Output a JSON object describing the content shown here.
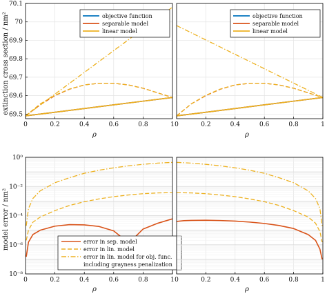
{
  "colors": {
    "objective": "#0072BD",
    "separable": "#D95319",
    "linear": "#EDB120",
    "grid": "#e3e3e3",
    "axis": "#000000"
  },
  "top_ylabel": "extinction cross section / nm²",
  "bottom_ylabel": "model error / nm²",
  "xlabel": "ρ",
  "chart_data": [
    {
      "type": "line",
      "panel": "top-left",
      "xlabel": "ρ",
      "ylabel": "extinction cross section / nm²",
      "xlim": [
        0,
        1
      ],
      "ylim": [
        69.475,
        70.1
      ],
      "xticks": [
        "0",
        "0.2",
        "0.4",
        "0.6",
        "0.8",
        "1"
      ],
      "yticks": [
        "69.5",
        "69.6",
        "69.7",
        "69.8",
        "69.9",
        "70",
        "70.1"
      ],
      "grid": true,
      "legend_position": "top-right",
      "legend": [
        "objective function",
        "separable model",
        "linear model"
      ],
      "series": [
        {
          "name": "objective function",
          "style": "solid",
          "color": "objective",
          "x": [
            0,
            0.2,
            0.4,
            0.6,
            0.8,
            1
          ],
          "y": [
            69.49,
            69.51,
            69.53,
            69.55,
            69.57,
            69.59
          ]
        },
        {
          "name": "separable model",
          "style": "solid",
          "color": "separable",
          "x": [
            0,
            0.2,
            0.4,
            0.6,
            0.8,
            1
          ],
          "y": [
            69.49,
            69.51,
            69.53,
            69.55,
            69.57,
            69.59
          ]
        },
        {
          "name": "linear model",
          "style": "solid",
          "color": "linear",
          "x": [
            0,
            0.2,
            0.4,
            0.6,
            0.8,
            1
          ],
          "y": [
            69.49,
            69.51,
            69.53,
            69.55,
            69.57,
            69.59
          ]
        },
        {
          "style": "dashed",
          "color": "separable",
          "x": [
            0,
            0.1,
            0.2,
            0.3,
            0.4,
            0.5,
            0.6,
            0.7,
            0.8,
            0.9,
            1
          ],
          "y": [
            69.49,
            69.55,
            69.6,
            69.635,
            69.658,
            69.667,
            69.667,
            69.658,
            69.64,
            69.615,
            69.59
          ]
        },
        {
          "style": "dashed",
          "color": "linear",
          "x": [
            0,
            0.1,
            0.2,
            0.3,
            0.4,
            0.5,
            0.6,
            0.7,
            0.8,
            0.9,
            1
          ],
          "y": [
            69.49,
            69.555,
            69.602,
            69.636,
            69.658,
            69.667,
            69.667,
            69.658,
            69.64,
            69.615,
            69.59
          ]
        },
        {
          "style": "dashdot",
          "color": "linear",
          "x": [
            0,
            1
          ],
          "y": [
            69.49,
            70.08
          ]
        }
      ]
    },
    {
      "type": "line",
      "panel": "top-right",
      "xlabel": "ρ",
      "xlim": [
        0,
        1
      ],
      "ylim": [
        69.475,
        70.1
      ],
      "xticks": [
        "0",
        "0.2",
        "0.4",
        "0.6",
        "0.8",
        "1"
      ],
      "grid": true,
      "legend_position": "top-right",
      "legend": [
        "objective function",
        "separable model",
        "linear model"
      ],
      "series": [
        {
          "name": "objective function",
          "style": "solid",
          "color": "objective",
          "x": [
            0,
            0.2,
            0.4,
            0.6,
            0.8,
            1
          ],
          "y": [
            69.49,
            69.51,
            69.53,
            69.55,
            69.57,
            69.59
          ]
        },
        {
          "name": "separable model",
          "style": "solid",
          "color": "separable",
          "x": [
            0,
            0.2,
            0.4,
            0.6,
            0.8,
            1
          ],
          "y": [
            69.49,
            69.51,
            69.53,
            69.55,
            69.57,
            69.59
          ]
        },
        {
          "name": "linear model",
          "style": "solid",
          "color": "linear",
          "x": [
            0,
            0.2,
            0.4,
            0.6,
            0.8,
            1
          ],
          "y": [
            69.49,
            69.51,
            69.53,
            69.55,
            69.57,
            69.59
          ]
        },
        {
          "style": "dashed",
          "color": "separable",
          "x": [
            0,
            0.1,
            0.2,
            0.3,
            0.4,
            0.5,
            0.6,
            0.7,
            0.8,
            0.9,
            1
          ],
          "y": [
            69.49,
            69.555,
            69.6,
            69.635,
            69.658,
            69.667,
            69.667,
            69.658,
            69.64,
            69.615,
            69.59
          ]
        },
        {
          "style": "dashed",
          "color": "linear",
          "x": [
            0,
            0.1,
            0.2,
            0.3,
            0.4,
            0.5,
            0.6,
            0.7,
            0.8,
            0.9,
            1
          ],
          "y": [
            69.49,
            69.555,
            69.602,
            69.636,
            69.658,
            69.667,
            69.667,
            69.658,
            69.64,
            69.615,
            69.59
          ]
        },
        {
          "style": "dashdot",
          "color": "linear",
          "x": [
            0,
            1
          ],
          "y": [
            69.98,
            69.59
          ]
        }
      ]
    },
    {
      "type": "line",
      "panel": "bottom-left",
      "xlabel": "ρ",
      "ylabel": "model error / nm²",
      "yscale": "log",
      "xlim": [
        0,
        1
      ],
      "ylim": [
        1e-08,
        1
      ],
      "xticks": [
        "0",
        "0.2",
        "0.4",
        "0.6",
        "0.8",
        "1"
      ],
      "yticks": [
        "10⁻⁸",
        "10⁻⁶",
        "10⁻⁴",
        "10⁻²",
        "10⁰"
      ],
      "grid": true,
      "legend_position": "bottom",
      "legend": [
        "error in sep. model",
        "error in lin. model",
        "error in lin. model for obj. func.",
        "including grayness penalization"
      ],
      "series": [
        {
          "name": "error in sep. model",
          "style": "solid",
          "color": "separable",
          "x": [
            0.005,
            0.02,
            0.05,
            0.1,
            0.2,
            0.3,
            0.4,
            0.5,
            0.6,
            0.65,
            0.68,
            0.695,
            0.71,
            0.74,
            0.8,
            0.9,
            1
          ],
          "y": [
            1.5e-07,
            1.5e-06,
            5e-06,
            1e-05,
            1.9e-05,
            2.4e-05,
            2.3e-05,
            1.8e-05,
            9e-06,
            3.5e-06,
            8e-07,
            1.5e-07,
            7e-07,
            3e-06,
            1.2e-05,
            3e-05,
            6e-05
          ]
        },
        {
          "name": "error in lin. model",
          "style": "dashed",
          "color": "linear",
          "x": [
            0.005,
            0.02,
            0.05,
            0.1,
            0.2,
            0.3,
            0.4,
            0.5,
            0.6,
            0.7,
            0.8,
            0.9,
            1
          ],
          "y": [
            2e-06,
            1e-05,
            3.5e-05,
            8e-05,
            0.00022,
            0.0005,
            0.0009,
            0.0014,
            0.002,
            0.0026,
            0.0032,
            0.0036,
            0.0038
          ]
        },
        {
          "name": "error in lin. model for obj. func.",
          "style": "dashdot",
          "color": "linear",
          "x": [
            0.005,
            0.02,
            0.05,
            0.1,
            0.2,
            0.3,
            0.4,
            0.5,
            0.6,
            0.7,
            0.8,
            0.9,
            1
          ],
          "y": [
            2e-05,
            0.0003,
            0.0015,
            0.005,
            0.018,
            0.04,
            0.08,
            0.13,
            0.19,
            0.26,
            0.33,
            0.4,
            0.45
          ]
        }
      ]
    },
    {
      "type": "line",
      "panel": "bottom-right",
      "xlabel": "ρ",
      "yscale": "log",
      "xlim": [
        0,
        1
      ],
      "ylim": [
        1e-08,
        1
      ],
      "xticks": [
        "0",
        "0.2",
        "0.4",
        "0.6",
        "0.8",
        "1"
      ],
      "grid": true,
      "series": [
        {
          "name": "error in sep. model",
          "style": "solid",
          "color": "separable",
          "x": [
            0,
            0.05,
            0.1,
            0.2,
            0.3,
            0.4,
            0.5,
            0.6,
            0.7,
            0.8,
            0.9,
            0.95,
            0.98,
            0.995
          ],
          "y": [
            4e-05,
            4.5e-05,
            4.7e-05,
            4.8e-05,
            4.6e-05,
            4.2e-05,
            3.6e-05,
            2.9e-05,
            2.1e-05,
            1.3e-05,
            5e-06,
            2e-06,
            5e-07,
            1e-07
          ]
        },
        {
          "name": "error in lin. model",
          "style": "dashed",
          "color": "linear",
          "x": [
            0,
            0.1,
            0.2,
            0.3,
            0.4,
            0.5,
            0.6,
            0.7,
            0.8,
            0.9,
            0.95,
            0.98,
            0.995
          ],
          "y": [
            0.0038,
            0.0036,
            0.0032,
            0.0026,
            0.002,
            0.0014,
            0.0009,
            0.0005,
            0.00022,
            8e-05,
            3e-05,
            8e-06,
            1.5e-06
          ]
        },
        {
          "name": "error in lin. model for obj. func.",
          "style": "dashdot",
          "color": "linear",
          "x": [
            0,
            0.1,
            0.2,
            0.3,
            0.4,
            0.5,
            0.6,
            0.7,
            0.8,
            0.9,
            0.95,
            0.98,
            0.995
          ],
          "y": [
            0.45,
            0.4,
            0.33,
            0.26,
            0.19,
            0.13,
            0.08,
            0.04,
            0.018,
            0.005,
            0.0015,
            0.0003,
            2e-05
          ]
        }
      ]
    }
  ]
}
